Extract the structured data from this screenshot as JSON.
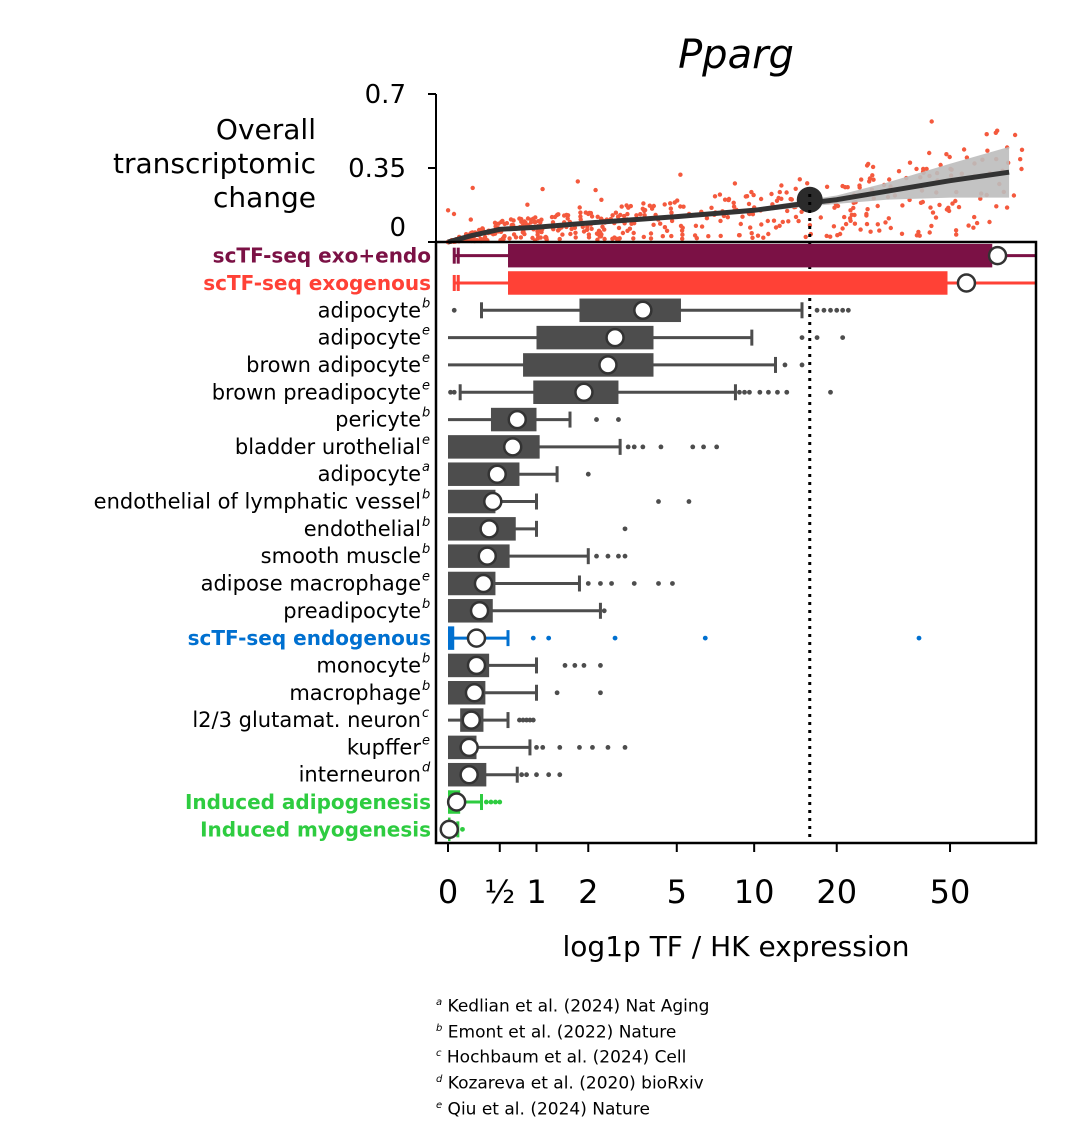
{
  "chart_data": [
    {
      "type": "scatter",
      "panel": "top",
      "title": "Pparg",
      "ylabel": "Overall transcriptomic change",
      "ylim": [
        0,
        0.7
      ],
      "yticks": [
        {
          "value": 0,
          "label": "0"
        },
        {
          "value": 0.35,
          "label": "0.35"
        },
        {
          "value": 0.7,
          "label": "0.7"
        }
      ],
      "point_color": "#f4593d",
      "trend": {
        "color": "#333333",
        "band_color": "#bdbdbd",
        "x": [
          0,
          0.2,
          0.5,
          1,
          2,
          5,
          10,
          15,
          20,
          30,
          50,
          80
        ],
        "y": [
          0.0,
          0.03,
          0.06,
          0.07,
          0.09,
          0.12,
          0.15,
          0.18,
          0.2,
          0.24,
          0.29,
          0.33
        ],
        "band": [
          0.0,
          0.01,
          0.01,
          0.01,
          0.01,
          0.01,
          0.01,
          0.015,
          0.02,
          0.04,
          0.08,
          0.12
        ]
      },
      "marker": {
        "x": 16,
        "y": 0.2
      }
    },
    {
      "type": "box",
      "panel": "bottom",
      "xlabel": "log1p TF / HK expression",
      "xticks": [
        {
          "value": 0,
          "label": "0"
        },
        {
          "value": 0.5,
          "label": "½"
        },
        {
          "value": 1,
          "label": "1"
        },
        {
          "value": 2,
          "label": "2"
        },
        {
          "value": 5,
          "label": "5"
        },
        {
          "value": 10,
          "label": "10"
        },
        {
          "value": 20,
          "label": "20"
        },
        {
          "value": 50,
          "label": "50"
        }
      ],
      "xlim": [
        -0.1,
        99
      ],
      "reference_line": 16,
      "rows": [
        {
          "label": "scTF-seq exo+endo",
          "sup": "",
          "color": "#7b1145",
          "bold": true,
          "q1": 0.6,
          "q3": 70,
          "mean": 73,
          "wlo": 0.05,
          "whi": 99,
          "outliers": []
        },
        {
          "label": "scTF-seq exogenous",
          "sup": "",
          "color": "#ff4136",
          "bold": true,
          "q1": 0.6,
          "q3": 49,
          "mean": 57,
          "wlo": 0.05,
          "whi": 99,
          "outliers": []
        },
        {
          "label": "adipocyte",
          "sup": "b",
          "color": "#4d4d4d",
          "bold": false,
          "q1": 1.8,
          "q3": 5.2,
          "mean": 3.6,
          "wlo": 0.3,
          "whi": 15,
          "outliers": [
            0.05,
            17,
            18,
            19,
            20,
            21,
            22
          ]
        },
        {
          "label": "adipocyte",
          "sup": "e",
          "color": "#4d4d4d",
          "bold": false,
          "q1": 1.0,
          "q3": 4.0,
          "mean": 2.7,
          "wlo": 0.0,
          "whi": 9.8,
          "outliers": [
            15,
            17,
            21
          ]
        },
        {
          "label": "brown adipocyte",
          "sup": "e",
          "color": "#4d4d4d",
          "bold": false,
          "q1": 0.8,
          "q3": 4.0,
          "mean": 2.5,
          "wlo": 0.0,
          "whi": 12,
          "outliers": [
            13,
            15
          ]
        },
        {
          "label": "brown preadipocyte",
          "sup": "e",
          "color": "#4d4d4d",
          "bold": false,
          "q1": 0.95,
          "q3": 2.8,
          "mean": 1.9,
          "wlo": 0.1,
          "whi": 8.5,
          "outliers": [
            0.02,
            0.05,
            8.8,
            9.2,
            9.6,
            10.5,
            11.3,
            12.2,
            13.2,
            19
          ]
        },
        {
          "label": "pericyte",
          "sup": "b",
          "color": "#4d4d4d",
          "bold": false,
          "q1": 0.4,
          "q3": 1.0,
          "mean": 0.72,
          "wlo": 0.0,
          "whi": 1.6,
          "outliers": [
            2.2,
            2.8
          ]
        },
        {
          "label": "bladder urothelial",
          "sup": "e",
          "color": "#4d4d4d",
          "bold": false,
          "q1": 0.0,
          "q3": 1.05,
          "mean": 0.66,
          "wlo": 0.0,
          "whi": 2.85,
          "outliers": [
            3.1,
            3.3,
            3.6,
            4.3,
            5.8,
            6.4,
            7.2
          ]
        },
        {
          "label": "adipocyte",
          "sup": "a",
          "color": "#4d4d4d",
          "bold": false,
          "q1": 0.0,
          "q3": 0.75,
          "mean": 0.47,
          "wlo": 0.0,
          "whi": 1.35,
          "outliers": [
            2.0
          ]
        },
        {
          "label": "endothelial of lymphatic vessel",
          "sup": "b",
          "color": "#4d4d4d",
          "bold": false,
          "q1": 0.0,
          "q3": 0.45,
          "mean": 0.42,
          "wlo": 0.0,
          "whi": 1.0,
          "outliers": [
            4.2,
            5.6
          ]
        },
        {
          "label": "endothelial",
          "sup": "b",
          "color": "#4d4d4d",
          "bold": false,
          "q1": 0.0,
          "q3": 0.7,
          "mean": 0.38,
          "wlo": 0.0,
          "whi": 1.0,
          "outliers": [
            3.0
          ]
        },
        {
          "label": "smooth muscle",
          "sup": "b",
          "color": "#4d4d4d",
          "bold": false,
          "q1": 0.0,
          "q3": 0.62,
          "mean": 0.36,
          "wlo": 0.0,
          "whi": 2.0,
          "outliers": [
            2.2,
            2.5,
            2.8,
            3.0
          ]
        },
        {
          "label": "adipose macrophage",
          "sup": "e",
          "color": "#4d4d4d",
          "bold": false,
          "q1": 0.0,
          "q3": 0.45,
          "mean": 0.32,
          "wlo": 0.0,
          "whi": 1.8,
          "outliers": [
            2.0,
            2.3,
            2.6,
            3.3,
            4.2,
            4.8
          ]
        },
        {
          "label": "preadipocyte",
          "sup": "b",
          "color": "#4d4d4d",
          "bold": false,
          "q1": 0.0,
          "q3": 0.42,
          "mean": 0.28,
          "wlo": 0.0,
          "whi": 2.3,
          "outliers": [
            2.4
          ]
        },
        {
          "label": "scTF-seq endogenous",
          "sup": "",
          "color": "#0070d0",
          "bold": true,
          "q1": 0.0,
          "q3": 0.05,
          "mean": 0.25,
          "wlo": 0.0,
          "whi": 0.6,
          "outliers": [
            0.95,
            1.2,
            2.7,
            6.5,
            39
          ]
        },
        {
          "label": "monocyte",
          "sup": "b",
          "color": "#4d4d4d",
          "bold": false,
          "q1": 0.0,
          "q3": 0.38,
          "mean": 0.25,
          "wlo": 0.0,
          "whi": 1.0,
          "outliers": [
            1.5,
            1.7,
            1.9,
            2.3
          ]
        },
        {
          "label": "macrophage",
          "sup": "b",
          "color": "#4d4d4d",
          "bold": false,
          "q1": 0.0,
          "q3": 0.34,
          "mean": 0.23,
          "wlo": 0.0,
          "whi": 1.0,
          "outliers": [
            1.35,
            2.3
          ]
        },
        {
          "label": "l2/3 glutamat. neuron",
          "sup": "c",
          "color": "#4d4d4d",
          "bold": false,
          "q1": 0.1,
          "q3": 0.32,
          "mean": 0.2,
          "wlo": 0.0,
          "whi": 0.6,
          "outliers": [
            0.75,
            0.8,
            0.85,
            0.9,
            0.95
          ]
        },
        {
          "label": "kupffer",
          "sup": "e",
          "color": "#4d4d4d",
          "bold": false,
          "q1": 0.0,
          "q3": 0.25,
          "mean": 0.18,
          "wlo": 0.0,
          "whi": 0.9,
          "outliers": [
            1.0,
            1.1,
            1.4,
            1.8,
            2.1,
            2.5,
            3.0
          ]
        },
        {
          "label": "interneuron",
          "sup": "d",
          "color": "#4d4d4d",
          "bold": false,
          "q1": 0.0,
          "q3": 0.35,
          "mean": 0.18,
          "wlo": 0.0,
          "whi": 0.72,
          "outliers": [
            0.78,
            0.85,
            1.0,
            1.2,
            1.4
          ]
        },
        {
          "label": "Induced adipogenesis",
          "sup": "",
          "color": "#2ecc40",
          "bold": true,
          "q1": 0.0,
          "q3": 0.1,
          "mean": 0.07,
          "wlo": 0.0,
          "whi": 0.3,
          "outliers": [
            0.35,
            0.4,
            0.45,
            0.5
          ]
        },
        {
          "label": "Induced myogenesis",
          "sup": "",
          "color": "#2ecc40",
          "bold": true,
          "q1": 0.0,
          "q3": 0.02,
          "mean": 0.01,
          "wlo": 0.0,
          "whi": 0.08,
          "outliers": [
            0.12
          ]
        }
      ]
    }
  ],
  "references": [
    {
      "sup": "a",
      "text": "Kedlian et al. (2024) Nat Aging"
    },
    {
      "sup": "b",
      "text": "Emont et al. (2022) Nature"
    },
    {
      "sup": "c",
      "text": "Hochbaum et al. (2024) Cell"
    },
    {
      "sup": "d",
      "text": "Kozareva et al. (2020) bioRxiv"
    },
    {
      "sup": "e",
      "text": "Qiu et al. (2024) Nature"
    }
  ]
}
